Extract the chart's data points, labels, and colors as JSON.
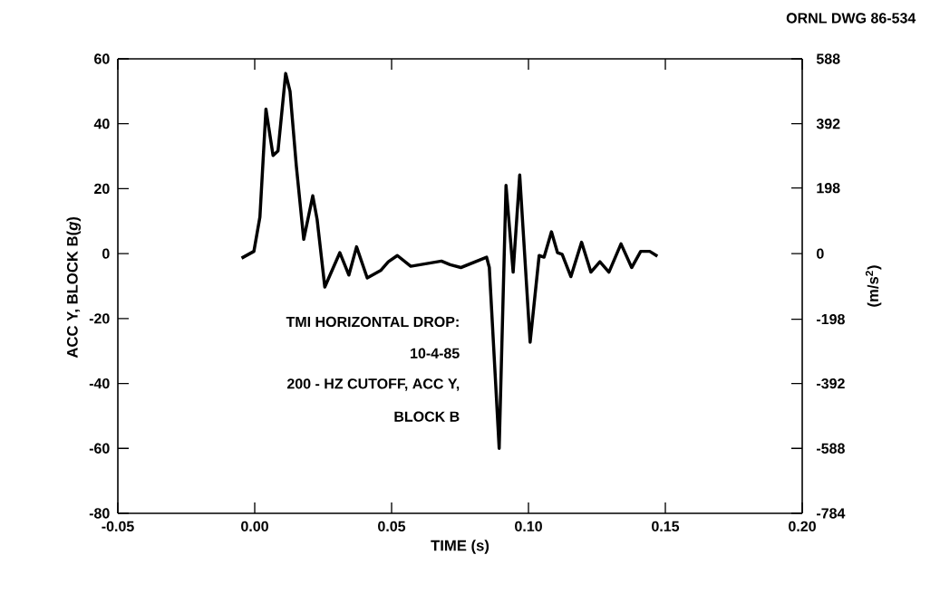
{
  "chart_data": {
    "type": "line",
    "x": [
      -0.0048,
      -0.0003,
      0.0019,
      0.0041,
      0.0067,
      0.0085,
      0.0113,
      0.0129,
      0.0152,
      0.0179,
      0.0212,
      0.0228,
      0.0256,
      0.0311,
      0.0344,
      0.0372,
      0.0411,
      0.046,
      0.0488,
      0.0521,
      0.057,
      0.0682,
      0.0714,
      0.0753,
      0.0847,
      0.0857,
      0.0893,
      0.0918,
      0.0944,
      0.0968,
      0.1006,
      0.1039,
      0.1057,
      0.1084,
      0.1106,
      0.1123,
      0.1155,
      0.1194,
      0.1228,
      0.1261,
      0.1294,
      0.1338,
      0.1377,
      0.141,
      0.1443,
      0.1471
    ],
    "series": [
      {
        "color": "#000000",
        "values": [
          -1.4,
          0.7,
          11.3,
          44.5,
          30.2,
          31.6,
          55.5,
          50,
          27,
          4.4,
          17.8,
          10.5,
          -10.3,
          0.3,
          -6.6,
          2.1,
          -7.5,
          -5.2,
          -2.5,
          -0.6,
          -3.9,
          -2.3,
          -3.4,
          -4.3,
          -1.1,
          -4.3,
          -60,
          21,
          -5.7,
          24.2,
          -27.3,
          -0.6,
          -1.1,
          6.7,
          0.3,
          -0.2,
          -7.1,
          3.5,
          -5.7,
          -2.5,
          -5.7,
          3,
          -4.3,
          0.7,
          0.7,
          -0.8
        ]
      }
    ],
    "xlim": [
      -0.05,
      0.2
    ],
    "xticks": [
      {
        "value": -0.05,
        "label": "-0.05"
      },
      {
        "value": 0,
        "label": "0.00"
      },
      {
        "value": 0.05,
        "label": "0.05"
      },
      {
        "value": 0.1,
        "label": "0.10"
      },
      {
        "value": 0.15,
        "label": "0.15"
      },
      {
        "value": 0.2,
        "label": "0.20"
      }
    ],
    "ylim": [
      -80,
      60
    ],
    "yticks": [
      -80,
      -60,
      -40,
      -20,
      0,
      20,
      40,
      60
    ],
    "y2lim": [
      -784,
      588
    ],
    "y2ticks": [
      -784,
      -588,
      -392,
      -198,
      0,
      198,
      392,
      588
    ],
    "xlabel": "TIME (s)",
    "ylabel": "ACC Y, BLOCK B(*g*)",
    "y2label": "(m/s$^{2}$)",
    "annotations": [
      "ORNL DWG 86-534",
      "TMI HORIZONTAL DROP:",
      "10-4-85",
      "200 - HZ CUTOFF, ACC Y,",
      "BLOCK B"
    ]
  }
}
